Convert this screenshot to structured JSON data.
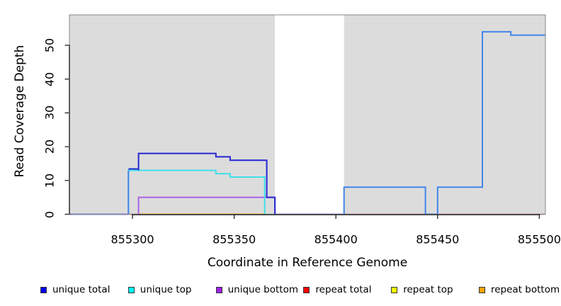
{
  "axes": {
    "x": {
      "title": "Coordinate in Reference Genome",
      "ticks": [
        {
          "label": "855300",
          "coord": 855300
        },
        {
          "label": "855350",
          "coord": 855350
        },
        {
          "label": "855400",
          "coord": 855400
        },
        {
          "label": "855450",
          "coord": 855450
        },
        {
          "label": "855500",
          "coord": 855500
        }
      ]
    },
    "y": {
      "title": "Read Coverage Depth",
      "ticks": [
        {
          "label": "0",
          "value": 0
        },
        {
          "label": "10",
          "value": 10
        },
        {
          "label": "20",
          "value": 20
        },
        {
          "label": "30",
          "value": 30
        },
        {
          "label": "40",
          "value": 40
        },
        {
          "label": "50",
          "value": 50
        }
      ]
    }
  },
  "legend": [
    {
      "label": "unique total",
      "color": "#0000EE"
    },
    {
      "label": "unique top",
      "color": "#00FFFF"
    },
    {
      "label": "unique bottom",
      "color": "#A020F0"
    },
    {
      "label": "repeat total",
      "color": "#FF0000"
    },
    {
      "label": "repeat top",
      "color": "#FFFF00"
    },
    {
      "label": "repeat bottom",
      "color": "#FFA500"
    }
  ],
  "chart_data": {
    "type": "line",
    "subtype": "step",
    "title": "",
    "xlabel": "Coordinate in Reference Genome",
    "ylabel": "Read Coverage Depth",
    "xlim": [
      855269,
      855503
    ],
    "ylim": [
      0,
      59
    ],
    "grid": false,
    "legend_position": "bottom",
    "plot_background": "#DCDCDC",
    "highlight_region": {
      "x0": 855370,
      "x1": 855404,
      "color": "#FFFFFF"
    },
    "series": [
      {
        "name": "unique total",
        "color": "#0000EE",
        "steps": [
          [
            855269,
            0
          ],
          [
            855298,
            13
          ],
          [
            855303,
            18
          ],
          [
            855341,
            17
          ],
          [
            855348,
            16
          ],
          [
            855366,
            5
          ],
          [
            855370,
            0
          ],
          [
            855404,
            8
          ],
          [
            855444,
            0
          ],
          [
            855450,
            8
          ],
          [
            855472,
            54
          ],
          [
            855486,
            53
          ],
          [
            855503,
            53
          ]
        ]
      },
      {
        "name": "unique top",
        "color": "#00FFFF",
        "steps": [
          [
            855269,
            0
          ],
          [
            855298,
            13
          ],
          [
            855341,
            12
          ],
          [
            855348,
            11
          ],
          [
            855365,
            0
          ],
          [
            855404,
            8
          ],
          [
            855444,
            0
          ],
          [
            855450,
            8
          ],
          [
            855472,
            54
          ],
          [
            855486,
            53
          ],
          [
            855503,
            53
          ]
        ]
      },
      {
        "name": "unique bottom",
        "color": "#A020F0",
        "steps": [
          [
            855269,
            0
          ],
          [
            855303,
            5
          ],
          [
            855370,
            0
          ],
          [
            855503,
            0
          ]
        ]
      },
      {
        "name": "repeat total",
        "color": "#FF0000",
        "steps": [
          [
            855269,
            0
          ],
          [
            855503,
            0
          ]
        ]
      },
      {
        "name": "repeat top",
        "color": "#FFFF00",
        "steps": [
          [
            855269,
            0
          ],
          [
            855503,
            0
          ]
        ]
      },
      {
        "name": "repeat bottom",
        "color": "#FFA500",
        "steps": [
          [
            855269,
            0
          ],
          [
            855503,
            0
          ]
        ]
      }
    ]
  },
  "render": {
    "segments": [
      {
        "name": "baseline-left-blend",
        "color": "#7474E4",
        "pts": [
          [
            855269,
            0
          ],
          [
            855298,
            0
          ]
        ]
      },
      {
        "name": "repeat-total-line",
        "color": "#D9536F",
        "w": 1.6,
        "pts": [
          [
            855298,
            0
          ],
          [
            855503,
            0
          ]
        ]
      },
      {
        "name": "repeat-bottom-line",
        "color": "#FFA500",
        "pts": [
          [
            855303,
            0
          ],
          [
            855365,
            0
          ]
        ]
      },
      {
        "name": "baseline-green-blend",
        "color": "#9FD9A9",
        "pts": [
          [
            855365,
            0
          ],
          [
            855370,
            0
          ]
        ]
      },
      {
        "name": "baseline-band-blend",
        "color": "#9B86EC",
        "pts": [
          [
            855370,
            0
          ],
          [
            855404,
            0
          ]
        ]
      },
      {
        "name": "unique-bottom-line",
        "color": "#AC61E6",
        "pts": [
          [
            855303,
            0
          ],
          [
            855303,
            5
          ],
          [
            855370,
            5
          ],
          [
            855370,
            0
          ]
        ]
      },
      {
        "name": "unique-top-line",
        "color": "#3FDFE8",
        "pts": [
          [
            855298,
            0
          ],
          [
            855298,
            13
          ],
          [
            855341,
            13
          ],
          [
            855341,
            12
          ],
          [
            855348,
            12
          ],
          [
            855348,
            11
          ],
          [
            855365,
            11
          ],
          [
            855365,
            0
          ]
        ]
      },
      {
        "name": "unique-total-lead",
        "color": "#2626D2",
        "dy": -2,
        "pts": [
          [
            855298,
            13
          ],
          [
            855303,
            13
          ]
        ]
      },
      {
        "name": "unique-total-line",
        "color": "#2626D2",
        "pts": [
          [
            855303,
            13
          ],
          [
            855303,
            18
          ],
          [
            855341,
            18
          ],
          [
            855341,
            17
          ],
          [
            855348,
            17
          ],
          [
            855348,
            16
          ],
          [
            855366,
            16
          ],
          [
            855366,
            5
          ],
          [
            855370,
            5
          ],
          [
            855370,
            0
          ]
        ]
      },
      {
        "name": "blend-rise",
        "color": "#4683E8",
        "pts": [
          [
            855298,
            0
          ],
          [
            855298,
            13
          ]
        ]
      },
      {
        "name": "total-top-blend-right",
        "color": "#4285EC",
        "pts": [
          [
            855404,
            0
          ],
          [
            855404,
            8
          ],
          [
            855444,
            8
          ],
          [
            855444,
            0
          ],
          [
            855450,
            0
          ],
          [
            855450,
            8
          ],
          [
            855472,
            8
          ],
          [
            855472,
            54
          ],
          [
            855486,
            54
          ],
          [
            855486,
            53
          ],
          [
            855503,
            53
          ]
        ]
      }
    ]
  }
}
